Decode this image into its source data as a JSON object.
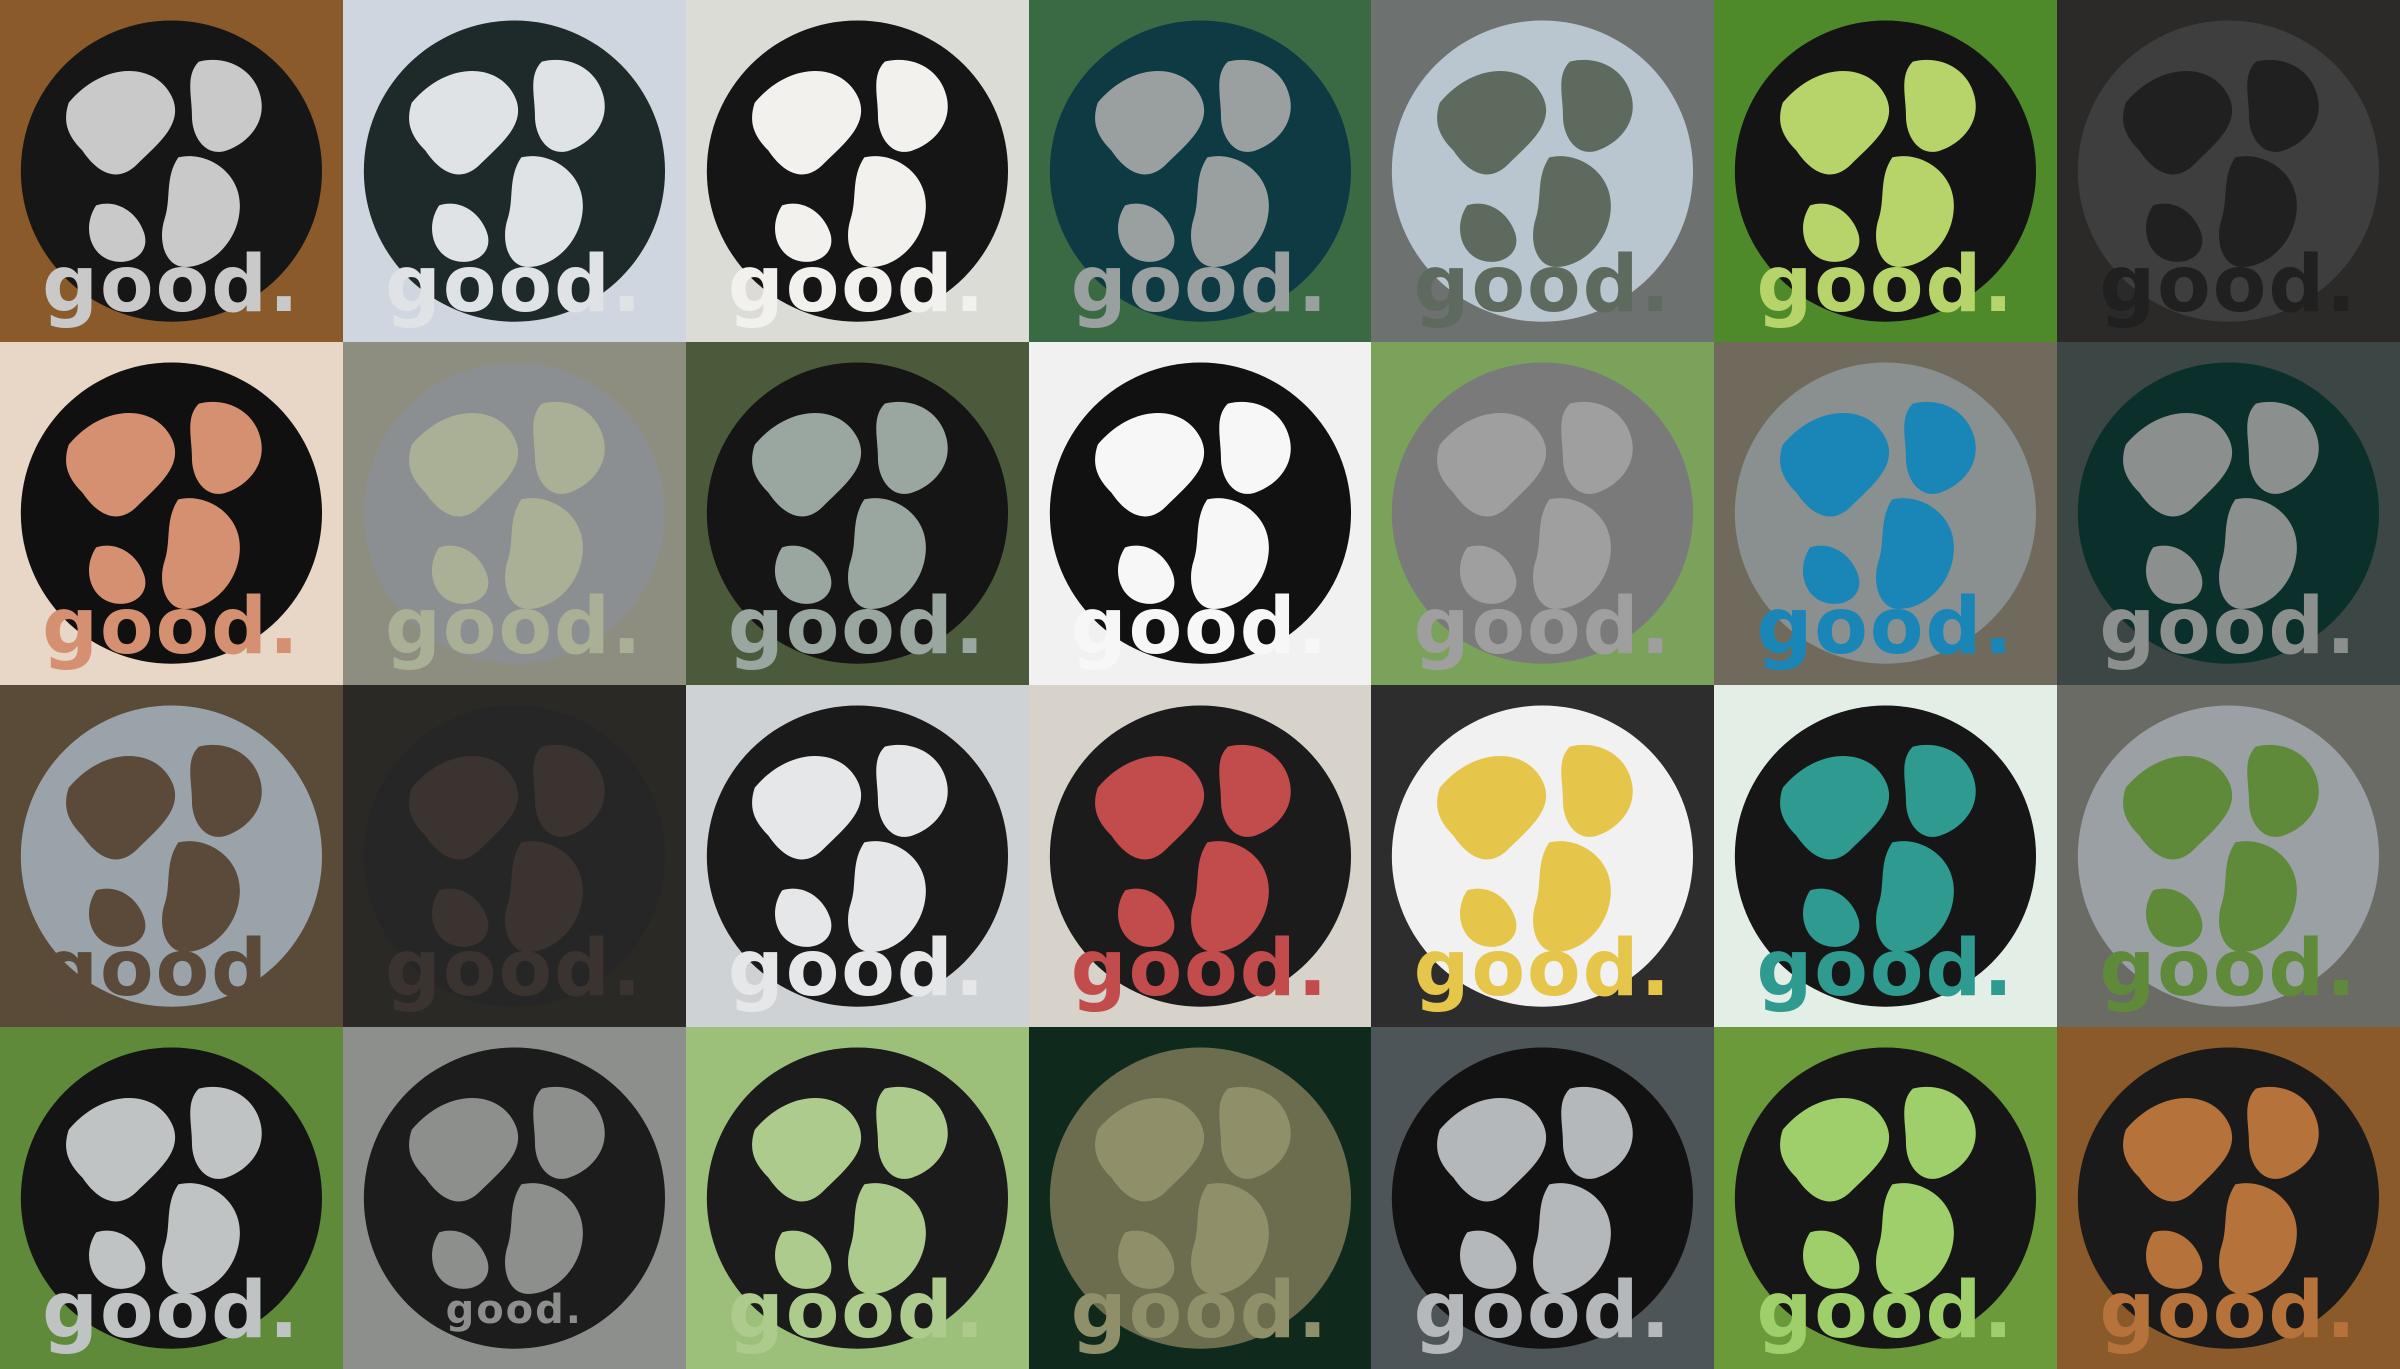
{
  "caption_word": "good.",
  "tiles": [
    {
      "bg": "#8a5a2b",
      "globe": "#161616",
      "cut": "#c9c9c9"
    },
    {
      "bg": "#cfd6df",
      "globe": "#1e2a2a",
      "cut": "#dfe3e5"
    },
    {
      "bg": "#dcdcd6",
      "globe": "#151515",
      "cut": "#f3f1ee"
    },
    {
      "bg": "#3a6a44",
      "globe": "#0e3a44",
      "cut": "#9aa0a0"
    },
    {
      "bg": "#6d7270",
      "globe": "#b9c6cf",
      "cut": "#5f6a5f"
    },
    {
      "bg": "#4f8a2a",
      "globe": "#141414",
      "cut": "#b7d46a"
    },
    {
      "bg": "#2b2a28",
      "globe": "#3e3e3e",
      "cut": "#202020"
    },
    {
      "bg": "#e8d6c6",
      "globe": "#101010",
      "cut": "#d49070"
    },
    {
      "bg": "#8d8e80",
      "globe": "#8b8f92",
      "cut": "#aab096"
    },
    {
      "bg": "#4b5a3a",
      "globe": "#151515",
      "cut": "#9aa6a0"
    },
    {
      "bg": "#f1f1f1",
      "globe": "#111111",
      "cut": "#f7f7f7"
    },
    {
      "bg": "#7ba25b",
      "globe": "#7a7a7a",
      "cut": "#9f9f9f"
    },
    {
      "bg": "#6f6a5c",
      "globe": "#8a8f8f",
      "cut": "#1a86b8"
    },
    {
      "bg": "#3c4644",
      "globe": "#0b2f2a",
      "cut": "#8b8f8d"
    },
    {
      "bg": "#5a4a38",
      "globe": "#9aa3aa",
      "cut": "#5b4a3a"
    },
    {
      "bg": "#2b2925",
      "globe": "#262626",
      "cut": "#3a3330"
    },
    {
      "bg": "#cfd2d4",
      "globe": "#1a1a1a",
      "cut": "#e5e7e9"
    },
    {
      "bg": "#d7d2ca",
      "globe": "#1b1b1b",
      "cut": "#c24b4b"
    },
    {
      "bg": "#2d2d2d",
      "globe": "#f1f1f1",
      "cut": "#e6c64a"
    },
    {
      "bg": "#e3efe6",
      "globe": "#161616",
      "cut": "#2f9a8f"
    },
    {
      "bg": "#6b6b66",
      "globe": "#9aa0a4",
      "cut": "#5e8a3a"
    },
    {
      "bg": "#5e8a3a",
      "globe": "#141414",
      "cut": "#bfc3c3"
    },
    {
      "bg": "#8c8f8c",
      "globe": "#1c1c1c",
      "cut": "#8c8f8c"
    },
    {
      "bg": "#9cc07a",
      "globe": "#1b1b1b",
      "cut": "#aecb8e"
    },
    {
      "bg": "#0f2a1c",
      "globe": "#6c6c4e",
      "cut": "#8f8f6a"
    },
    {
      "bg": "#4d5558",
      "globe": "#121212",
      "cut": "#b5b8ba"
    },
    {
      "bg": "#6b9a3a",
      "globe": "#161616",
      "cut": "#9fcf6a"
    },
    {
      "bg": "#8a5a2b",
      "globe": "#1a1a1a",
      "cut": "#b5723a"
    }
  ]
}
